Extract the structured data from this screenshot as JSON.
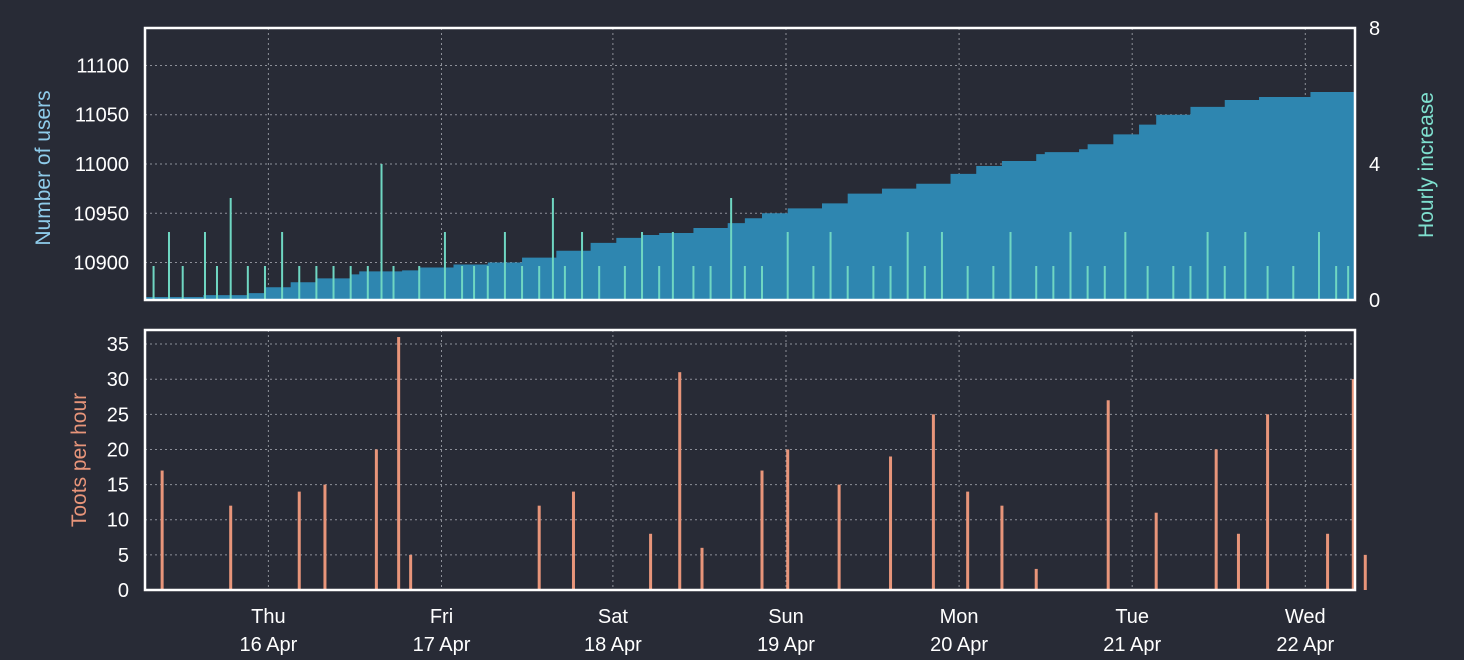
{
  "chart_data": [
    {
      "type": "area",
      "title": "",
      "xlabel": "",
      "ylabel": "Number of users",
      "ylabel_right": "Hourly increase",
      "ylim": [
        10862,
        11138
      ],
      "yticks": [
        10900,
        10950,
        11000,
        11050,
        11100
      ],
      "y2lim": [
        0,
        8
      ],
      "y2ticks": [
        0,
        4,
        8
      ],
      "colors": {
        "users": "#2e86b0",
        "increase": "#6fd6c2",
        "users_label": "#8ecbea",
        "increase_label": "#7fe0cf"
      },
      "x_range": [
        0,
        7.06
      ],
      "users_curve": [
        [
          0.0,
          10865
        ],
        [
          0.33,
          10865
        ],
        [
          0.34,
          10867
        ],
        [
          0.6,
          10869
        ],
        [
          0.7,
          10875
        ],
        [
          0.85,
          10880
        ],
        [
          1.0,
          10884
        ],
        [
          1.2,
          10888
        ],
        [
          1.25,
          10891
        ],
        [
          1.5,
          10892
        ],
        [
          1.6,
          10895
        ],
        [
          1.8,
          10898
        ],
        [
          2.0,
          10900
        ],
        [
          2.2,
          10905
        ],
        [
          2.4,
          10912
        ],
        [
          2.6,
          10920
        ],
        [
          2.75,
          10925
        ],
        [
          2.9,
          10928
        ],
        [
          3.0,
          10930
        ],
        [
          3.2,
          10935
        ],
        [
          3.4,
          10940
        ],
        [
          3.5,
          10945
        ],
        [
          3.6,
          10950
        ],
        [
          3.75,
          10955
        ],
        [
          3.95,
          10960
        ],
        [
          4.1,
          10970
        ],
        [
          4.3,
          10975
        ],
        [
          4.5,
          10980
        ],
        [
          4.7,
          10990
        ],
        [
          4.85,
          10998
        ],
        [
          5.0,
          11003
        ],
        [
          5.2,
          11010
        ],
        [
          5.25,
          11012
        ],
        [
          5.45,
          11015
        ],
        [
          5.5,
          11020
        ],
        [
          5.65,
          11030
        ],
        [
          5.8,
          11040
        ],
        [
          5.9,
          11050
        ],
        [
          6.1,
          11058
        ],
        [
          6.3,
          11065
        ],
        [
          6.5,
          11068
        ],
        [
          6.8,
          11073
        ],
        [
          7.06,
          11075
        ]
      ],
      "increase_spikes": [
        [
          0.05,
          1
        ],
        [
          0.14,
          2
        ],
        [
          0.22,
          1
        ],
        [
          0.35,
          2
        ],
        [
          0.42,
          1
        ],
        [
          0.5,
          3
        ],
        [
          0.6,
          1
        ],
        [
          0.7,
          1
        ],
        [
          0.8,
          2
        ],
        [
          0.9,
          1
        ],
        [
          1.0,
          1
        ],
        [
          1.1,
          1
        ],
        [
          1.2,
          1
        ],
        [
          1.3,
          1
        ],
        [
          1.38,
          4
        ],
        [
          1.45,
          1
        ],
        [
          1.6,
          1
        ],
        [
          1.75,
          2
        ],
        [
          1.85,
          1
        ],
        [
          1.92,
          1
        ],
        [
          2.0,
          1
        ],
        [
          2.1,
          2
        ],
        [
          2.2,
          1
        ],
        [
          2.3,
          1
        ],
        [
          2.38,
          3
        ],
        [
          2.45,
          1
        ],
        [
          2.55,
          2
        ],
        [
          2.65,
          1
        ],
        [
          2.8,
          1
        ],
        [
          2.9,
          2
        ],
        [
          3.0,
          1
        ],
        [
          3.08,
          2
        ],
        [
          3.2,
          1
        ],
        [
          3.3,
          1
        ],
        [
          3.42,
          3
        ],
        [
          3.5,
          1
        ],
        [
          3.6,
          1
        ],
        [
          3.75,
          2
        ],
        [
          3.9,
          1
        ],
        [
          4.0,
          2
        ],
        [
          4.1,
          1
        ],
        [
          4.25,
          1
        ],
        [
          4.35,
          1
        ],
        [
          4.45,
          2
        ],
        [
          4.55,
          1
        ],
        [
          4.65,
          2
        ],
        [
          4.8,
          1
        ],
        [
          4.95,
          1
        ],
        [
          5.05,
          2
        ],
        [
          5.2,
          1
        ],
        [
          5.3,
          1
        ],
        [
          5.4,
          2
        ],
        [
          5.5,
          1
        ],
        [
          5.6,
          1
        ],
        [
          5.72,
          2
        ],
        [
          5.85,
          1
        ],
        [
          6.0,
          1
        ],
        [
          6.1,
          1
        ],
        [
          6.2,
          2
        ],
        [
          6.3,
          1
        ],
        [
          6.42,
          2
        ],
        [
          6.55,
          1
        ],
        [
          6.7,
          1
        ],
        [
          6.85,
          2
        ],
        [
          6.95,
          1
        ],
        [
          7.02,
          1
        ]
      ]
    },
    {
      "type": "bar",
      "title": "",
      "xlabel": "",
      "ylabel": "Toots per hour",
      "ylim": [
        0,
        37
      ],
      "yticks": [
        0,
        5,
        10,
        15,
        20,
        25,
        30,
        35
      ],
      "colors": {
        "toots": "#e8957a",
        "label": "#e8957a"
      },
      "x_range": [
        0,
        7.06
      ],
      "toots_peaks": [
        [
          0.1,
          17
        ],
        [
          0.5,
          12
        ],
        [
          0.9,
          14
        ],
        [
          1.05,
          15
        ],
        [
          1.35,
          20
        ],
        [
          1.48,
          36
        ],
        [
          1.55,
          5
        ],
        [
          2.3,
          12
        ],
        [
          2.5,
          14
        ],
        [
          2.95,
          8
        ],
        [
          3.12,
          31
        ],
        [
          3.25,
          6
        ],
        [
          3.6,
          17
        ],
        [
          3.75,
          20
        ],
        [
          4.05,
          15
        ],
        [
          4.35,
          19
        ],
        [
          4.6,
          25
        ],
        [
          4.8,
          14
        ],
        [
          5.0,
          12
        ],
        [
          5.2,
          3
        ],
        [
          5.62,
          27
        ],
        [
          5.9,
          11
        ],
        [
          6.25,
          20
        ],
        [
          6.38,
          8
        ],
        [
          6.55,
          25
        ],
        [
          6.9,
          8
        ],
        [
          7.05,
          30
        ],
        [
          7.12,
          5
        ]
      ],
      "x_tick_labels": [
        {
          "x": 0.72,
          "day": "Thu",
          "date": "16 Apr"
        },
        {
          "x": 1.73,
          "day": "Fri",
          "date": "17 Apr"
        },
        {
          "x": 2.73,
          "day": "Sat",
          "date": "18 Apr"
        },
        {
          "x": 3.74,
          "day": "Sun",
          "date": "19 Apr"
        },
        {
          "x": 4.75,
          "day": "Mon",
          "date": "20 Apr"
        },
        {
          "x": 5.76,
          "day": "Tue",
          "date": "21 Apr"
        },
        {
          "x": 6.77,
          "day": "Wed",
          "date": "22 Apr"
        }
      ]
    }
  ],
  "labels": {
    "users": "Number of users",
    "increase": "Hourly increase",
    "toots": "Toots per hour"
  }
}
